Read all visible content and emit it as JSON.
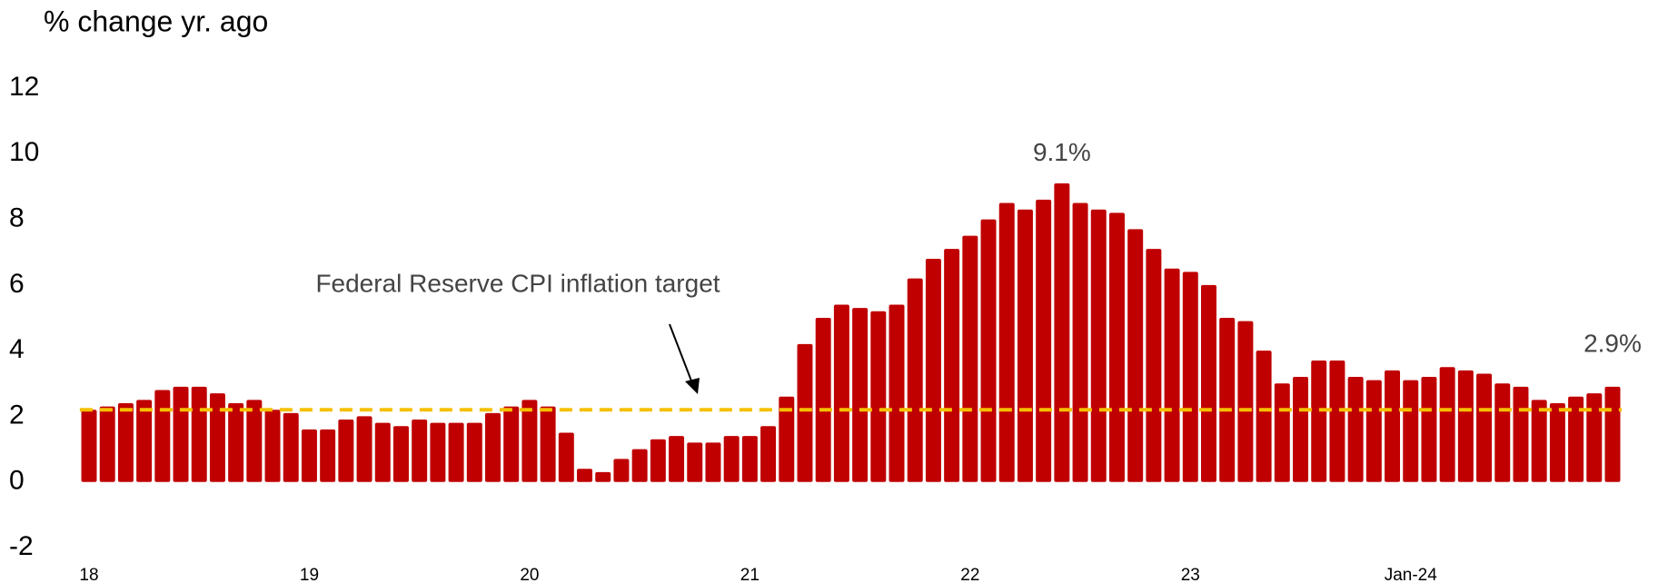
{
  "chart_data": {
    "type": "bar",
    "title": "% change yr. ago",
    "categories": [
      "18",
      null,
      null,
      null,
      null,
      null,
      null,
      null,
      null,
      null,
      null,
      null,
      "19",
      null,
      null,
      null,
      null,
      null,
      null,
      null,
      null,
      null,
      null,
      null,
      "20",
      null,
      null,
      null,
      null,
      null,
      null,
      null,
      null,
      null,
      null,
      null,
      "21",
      null,
      null,
      null,
      null,
      null,
      null,
      null,
      null,
      null,
      null,
      null,
      "22",
      null,
      null,
      null,
      null,
      null,
      null,
      null,
      null,
      null,
      null,
      null,
      "23",
      null,
      null,
      null,
      null,
      null,
      null,
      null,
      null,
      null,
      null,
      null,
      "Jan-24",
      null,
      null,
      null,
      null,
      null,
      null,
      null,
      null,
      null,
      null,
      null
    ],
    "values": [
      2.2,
      2.3,
      2.4,
      2.5,
      2.8,
      2.9,
      2.9,
      2.7,
      2.4,
      2.5,
      2.2,
      2.1,
      1.6,
      1.6,
      1.9,
      2.0,
      1.8,
      1.7,
      1.9,
      1.8,
      1.8,
      1.8,
      2.1,
      2.3,
      2.5,
      2.3,
      1.5,
      0.4,
      0.3,
      0.7,
      1.0,
      1.3,
      1.4,
      1.2,
      1.2,
      1.4,
      1.4,
      1.7,
      2.6,
      4.2,
      5.0,
      5.4,
      5.3,
      5.2,
      5.4,
      6.2,
      6.8,
      7.1,
      7.5,
      8.0,
      8.5,
      8.3,
      8.6,
      9.1,
      8.5,
      8.3,
      8.2,
      7.7,
      7.1,
      6.5,
      6.4,
      6.0,
      5.0,
      4.9,
      4.0,
      3.0,
      3.2,
      3.7,
      3.7,
      3.2,
      3.1,
      3.4,
      3.1,
      3.2,
      3.5,
      3.4,
      3.3,
      3.0,
      2.9,
      2.5,
      2.4,
      2.6,
      2.7,
      2.9
    ],
    "value_labels": [
      null,
      null,
      null,
      null,
      null,
      null,
      null,
      null,
      null,
      null,
      null,
      null,
      null,
      null,
      null,
      null,
      null,
      null,
      null,
      null,
      null,
      null,
      null,
      null,
      null,
      null,
      null,
      null,
      null,
      null,
      null,
      null,
      null,
      null,
      null,
      null,
      null,
      null,
      null,
      null,
      null,
      null,
      null,
      null,
      null,
      null,
      null,
      null,
      null,
      null,
      null,
      null,
      null,
      "9.1%",
      null,
      null,
      null,
      null,
      null,
      null,
      null,
      null,
      null,
      null,
      null,
      null,
      null,
      null,
      null,
      null,
      null,
      null,
      null,
      null,
      null,
      null,
      null,
      null,
      null,
      null,
      null,
      null,
      null,
      "2.9%"
    ],
    "color": "#c00000",
    "ylim": [
      -2,
      12
    ],
    "yticks": [
      -2,
      0,
      2,
      4,
      6,
      8,
      10,
      12
    ],
    "grid": false,
    "target": {
      "value": 2.2,
      "label": "Federal Reserve CPI inflation target",
      "color": "#f5c000"
    }
  }
}
